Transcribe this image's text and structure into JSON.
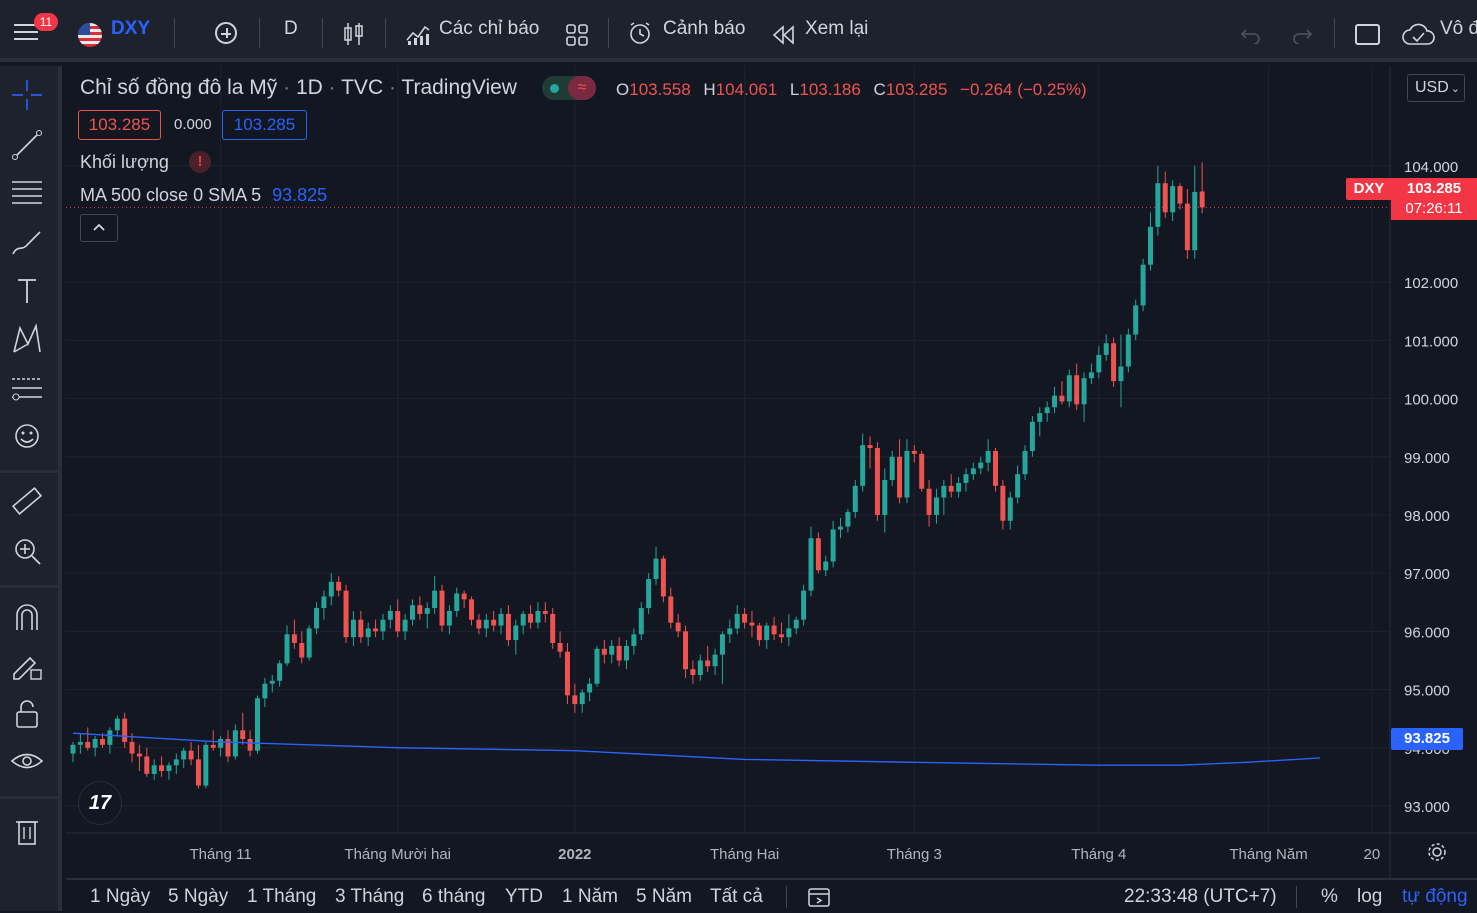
{
  "toolbar": {
    "notification_count": "11",
    "symbol": "DXY",
    "interval": "D",
    "indicators_label": "Các chỉ báo",
    "alerts_label": "Cảnh báo",
    "replay_label": "Xem lại",
    "right_text": "Vô đ"
  },
  "legend": {
    "title": "Chỉ số đồng đô la Mỹ",
    "timeframe": "1D",
    "source": "TVC",
    "provider": "TradingView",
    "open_label": "O",
    "open": "103.558",
    "high_label": "H",
    "high": "104.061",
    "low_label": "L",
    "low": "103.186",
    "close_label": "C",
    "close": "103.285",
    "change": "−0.264 (−0.25%)",
    "bid": "103.285",
    "spread": "0.000",
    "ask": "103.285",
    "volume_label": "Khối lượng",
    "ma_label": "MA 500 close 0 SMA 5",
    "ma_value": "93.825"
  },
  "currency": "USD",
  "price_tag": {
    "symbol": "DXY",
    "price": "103.285",
    "countdown": "07:26:11"
  },
  "ma_tag": "93.825",
  "bottom": {
    "ranges": [
      "1 Ngày",
      "5 Ngày",
      "1 Tháng",
      "3 Tháng",
      "6 tháng",
      "YTD",
      "1 Năm",
      "5 Năm",
      "Tất cả"
    ],
    "time": "22:33:48 (UTC+7)",
    "percent": "%",
    "log": "log",
    "auto": "tự động"
  },
  "colors": {
    "up": "#26a69a",
    "down": "#ef5350",
    "ma": "#2962ff",
    "bg": "#131722"
  },
  "chart_data": {
    "type": "candlestick",
    "title": "Chỉ số đồng đô la Mỹ · 1D · TVC",
    "y_ticks": [
      93,
      94,
      95,
      96,
      97,
      98,
      99,
      100,
      101,
      102,
      104
    ],
    "y_tick_labels": [
      "93.000",
      "94.000",
      "95.000",
      "96.000",
      "97.000",
      "98.000",
      "99.000",
      "100.000",
      "101.000",
      "102.000",
      "104.000"
    ],
    "ylim": [
      92.25,
      105.25
    ],
    "x_labels": [
      "Tháng 11",
      "Tháng Mười hai",
      "2022",
      "Tháng Hai",
      "Tháng 3",
      "Tháng 4",
      "Tháng Năm",
      "20"
    ],
    "x_label_index": [
      20,
      44,
      68,
      91,
      114,
      139,
      162,
      176
    ],
    "ohlc": [
      [
        93.9,
        94.1,
        93.75,
        94.05
      ],
      [
        94.05,
        94.25,
        93.9,
        94.1
      ],
      [
        94.1,
        94.35,
        93.95,
        94.0
      ],
      [
        94.0,
        94.2,
        93.85,
        94.15
      ],
      [
        94.15,
        94.25,
        94.0,
        94.05
      ],
      [
        94.05,
        94.35,
        93.9,
        94.3
      ],
      [
        94.3,
        94.55,
        94.2,
        94.5
      ],
      [
        94.5,
        94.6,
        94.0,
        94.1
      ],
      [
        94.1,
        94.25,
        93.75,
        93.9
      ],
      [
        93.9,
        94.05,
        93.6,
        93.85
      ],
      [
        93.85,
        94.0,
        93.5,
        93.55
      ],
      [
        93.55,
        93.8,
        93.45,
        93.7
      ],
      [
        93.7,
        93.85,
        93.5,
        93.6
      ],
      [
        93.6,
        93.75,
        93.45,
        93.7
      ],
      [
        93.7,
        93.9,
        93.55,
        93.8
      ],
      [
        93.8,
        94.0,
        93.65,
        93.95
      ],
      [
        93.95,
        94.1,
        93.7,
        93.8
      ],
      [
        93.8,
        94.05,
        93.3,
        93.35
      ],
      [
        93.35,
        94.1,
        93.3,
        94.05
      ],
      [
        94.05,
        94.3,
        93.95,
        94.0
      ],
      [
        94.0,
        94.2,
        93.85,
        94.15
      ],
      [
        94.15,
        94.3,
        93.75,
        93.85
      ],
      [
        93.85,
        94.4,
        93.8,
        94.3
      ],
      [
        94.3,
        94.6,
        94.05,
        94.15
      ],
      [
        94.15,
        94.3,
        93.85,
        93.95
      ],
      [
        93.95,
        94.9,
        93.9,
        94.85
      ],
      [
        94.85,
        95.2,
        94.7,
        95.1
      ],
      [
        95.1,
        95.25,
        94.95,
        95.15
      ],
      [
        95.15,
        95.5,
        95.05,
        95.45
      ],
      [
        95.45,
        96.1,
        95.4,
        95.95
      ],
      [
        95.95,
        96.2,
        95.7,
        95.8
      ],
      [
        95.8,
        96.0,
        95.45,
        95.55
      ],
      [
        95.55,
        96.1,
        95.5,
        96.05
      ],
      [
        96.05,
        96.5,
        95.95,
        96.4
      ],
      [
        96.4,
        96.7,
        96.2,
        96.6
      ],
      [
        96.6,
        97.0,
        96.45,
        96.85
      ],
      [
        96.85,
        96.95,
        96.6,
        96.7
      ],
      [
        96.7,
        96.8,
        95.8,
        95.9
      ],
      [
        95.9,
        96.35,
        95.75,
        96.2
      ],
      [
        96.2,
        96.35,
        95.8,
        95.9
      ],
      [
        95.9,
        96.15,
        95.75,
        96.05
      ],
      [
        96.05,
        96.2,
        95.9,
        96.0
      ],
      [
        96.0,
        96.3,
        95.85,
        96.2
      ],
      [
        96.2,
        96.45,
        96.05,
        96.35
      ],
      [
        96.35,
        96.55,
        95.9,
        96.0
      ],
      [
        96.0,
        96.3,
        95.85,
        96.2
      ],
      [
        96.2,
        96.55,
        96.1,
        96.45
      ],
      [
        96.45,
        96.6,
        96.2,
        96.3
      ],
      [
        96.3,
        96.5,
        96.05,
        96.4
      ],
      [
        96.4,
        96.95,
        96.3,
        96.7
      ],
      [
        96.7,
        96.8,
        96.0,
        96.1
      ],
      [
        96.1,
        96.45,
        95.95,
        96.35
      ],
      [
        96.35,
        96.75,
        96.25,
        96.65
      ],
      [
        96.65,
        96.7,
        96.4,
        96.55
      ],
      [
        96.55,
        96.6,
        96.1,
        96.2
      ],
      [
        96.2,
        96.3,
        95.95,
        96.05
      ],
      [
        96.05,
        96.3,
        95.9,
        96.2
      ],
      [
        96.2,
        96.35,
        96.0,
        96.1
      ],
      [
        96.1,
        96.4,
        95.95,
        96.3
      ],
      [
        96.3,
        96.45,
        95.75,
        95.85
      ],
      [
        95.85,
        96.2,
        95.6,
        96.1
      ],
      [
        96.1,
        96.35,
        95.95,
        96.3
      ],
      [
        96.3,
        96.45,
        96.05,
        96.15
      ],
      [
        96.15,
        96.5,
        96.05,
        96.35
      ],
      [
        96.35,
        96.5,
        96.15,
        96.3
      ],
      [
        96.3,
        96.4,
        95.7,
        95.8
      ],
      [
        95.8,
        96.0,
        95.55,
        95.65
      ],
      [
        95.65,
        95.8,
        94.75,
        94.9
      ],
      [
        94.9,
        95.1,
        94.6,
        94.75
      ],
      [
        94.75,
        95.0,
        94.6,
        94.95
      ],
      [
        94.95,
        95.2,
        94.8,
        95.1
      ],
      [
        95.1,
        95.75,
        95.05,
        95.7
      ],
      [
        95.7,
        95.85,
        95.45,
        95.6
      ],
      [
        95.6,
        95.85,
        95.45,
        95.75
      ],
      [
        95.75,
        95.9,
        95.4,
        95.5
      ],
      [
        95.5,
        95.85,
        95.35,
        95.75
      ],
      [
        95.75,
        96.05,
        95.6,
        95.95
      ],
      [
        95.95,
        96.5,
        95.85,
        96.4
      ],
      [
        96.4,
        97.0,
        96.3,
        96.9
      ],
      [
        96.9,
        97.45,
        96.8,
        97.25
      ],
      [
        97.25,
        97.3,
        96.5,
        96.6
      ],
      [
        96.6,
        96.75,
        96.05,
        96.15
      ],
      [
        96.15,
        96.3,
        95.9,
        96.0
      ],
      [
        96.0,
        96.1,
        95.2,
        95.35
      ],
      [
        95.35,
        95.5,
        95.1,
        95.25
      ],
      [
        95.25,
        95.6,
        95.15,
        95.5
      ],
      [
        95.5,
        95.75,
        95.3,
        95.4
      ],
      [
        95.4,
        95.7,
        95.25,
        95.6
      ],
      [
        95.6,
        96.0,
        95.1,
        95.95
      ],
      [
        95.95,
        96.2,
        95.8,
        96.05
      ],
      [
        96.05,
        96.45,
        95.95,
        96.3
      ],
      [
        96.3,
        96.4,
        96.05,
        96.15
      ],
      [
        96.15,
        96.35,
        95.9,
        96.1
      ],
      [
        96.1,
        96.15,
        95.75,
        95.85
      ],
      [
        95.85,
        96.15,
        95.7,
        96.1
      ],
      [
        96.1,
        96.25,
        95.85,
        95.95
      ],
      [
        95.95,
        96.15,
        95.8,
        95.9
      ],
      [
        95.9,
        96.3,
        95.75,
        96.05
      ],
      [
        96.05,
        96.25,
        95.95,
        96.2
      ],
      [
        96.2,
        96.8,
        96.1,
        96.7
      ],
      [
        96.7,
        97.8,
        96.6,
        97.6
      ],
      [
        97.6,
        97.7,
        97.0,
        97.05
      ],
      [
        97.05,
        97.3,
        96.95,
        97.2
      ],
      [
        97.2,
        97.9,
        97.1,
        97.75
      ],
      [
        97.75,
        97.95,
        97.6,
        97.8
      ],
      [
        97.8,
        98.1,
        97.7,
        98.05
      ],
      [
        98.05,
        98.6,
        97.95,
        98.5
      ],
      [
        98.5,
        99.4,
        98.4,
        99.2
      ],
      [
        99.2,
        99.35,
        98.8,
        99.15
      ],
      [
        99.15,
        99.25,
        97.9,
        98.0
      ],
      [
        98.0,
        98.8,
        97.7,
        98.6
      ],
      [
        98.6,
        99.1,
        98.5,
        99.0
      ],
      [
        99.0,
        99.3,
        98.2,
        98.3
      ],
      [
        98.3,
        99.3,
        98.2,
        99.1
      ],
      [
        99.1,
        99.2,
        98.9,
        99.05
      ],
      [
        99.05,
        99.1,
        98.4,
        98.45
      ],
      [
        98.45,
        98.6,
        97.8,
        98.0
      ],
      [
        98.0,
        98.45,
        97.85,
        98.3
      ],
      [
        98.3,
        98.6,
        98.0,
        98.5
      ],
      [
        98.5,
        98.7,
        98.3,
        98.4
      ],
      [
        98.4,
        98.65,
        98.3,
        98.55
      ],
      [
        98.55,
        98.8,
        98.4,
        98.7
      ],
      [
        98.7,
        98.9,
        98.6,
        98.8
      ],
      [
        98.8,
        99.0,
        98.7,
        98.9
      ],
      [
        98.9,
        99.3,
        98.75,
        99.1
      ],
      [
        99.1,
        99.15,
        98.4,
        98.5
      ],
      [
        98.5,
        98.6,
        97.75,
        97.9
      ],
      [
        97.9,
        98.4,
        97.75,
        98.3
      ],
      [
        98.3,
        98.85,
        98.2,
        98.7
      ],
      [
        98.7,
        99.2,
        98.6,
        99.1
      ],
      [
        99.1,
        99.7,
        99.0,
        99.6
      ],
      [
        99.6,
        99.85,
        99.35,
        99.75
      ],
      [
        99.75,
        99.95,
        99.6,
        99.85
      ],
      [
        99.85,
        100.2,
        99.75,
        100.05
      ],
      [
        100.05,
        100.3,
        99.9,
        99.95
      ],
      [
        99.95,
        100.5,
        99.85,
        100.4
      ],
      [
        100.4,
        100.6,
        99.8,
        99.9
      ],
      [
        99.9,
        100.45,
        99.6,
        100.35
      ],
      [
        100.35,
        100.6,
        100.25,
        100.45
      ],
      [
        100.45,
        100.9,
        100.35,
        100.75
      ],
      [
        100.75,
        101.1,
        100.65,
        100.95
      ],
      [
        100.95,
        101.05,
        100.2,
        100.3
      ],
      [
        100.3,
        101.1,
        99.85,
        100.55
      ],
      [
        100.55,
        101.2,
        100.45,
        101.1
      ],
      [
        101.1,
        101.7,
        101.0,
        101.6
      ],
      [
        101.6,
        102.4,
        101.5,
        102.3
      ],
      [
        102.3,
        103.2,
        102.2,
        102.95
      ],
      [
        102.95,
        104.0,
        102.8,
        103.7
      ],
      [
        103.7,
        103.9,
        103.1,
        103.2
      ],
      [
        103.2,
        103.75,
        103.05,
        103.65
      ],
      [
        103.65,
        103.7,
        103.25,
        103.35
      ],
      [
        103.35,
        103.6,
        102.4,
        102.55
      ],
      [
        102.55,
        104.0,
        102.4,
        103.55
      ],
      [
        103.558,
        104.061,
        103.186,
        103.285
      ]
    ],
    "ma_label": "MA 500 close 0 SMA 5",
    "ma_points": [
      [
        0,
        94.25
      ],
      [
        20,
        94.1
      ],
      [
        44,
        94.0
      ],
      [
        68,
        93.95
      ],
      [
        91,
        93.8
      ],
      [
        114,
        93.75
      ],
      [
        139,
        93.7
      ],
      [
        150,
        93.7
      ],
      [
        159,
        93.75
      ],
      [
        169,
        93.825
      ]
    ],
    "last_price": 103.285
  }
}
